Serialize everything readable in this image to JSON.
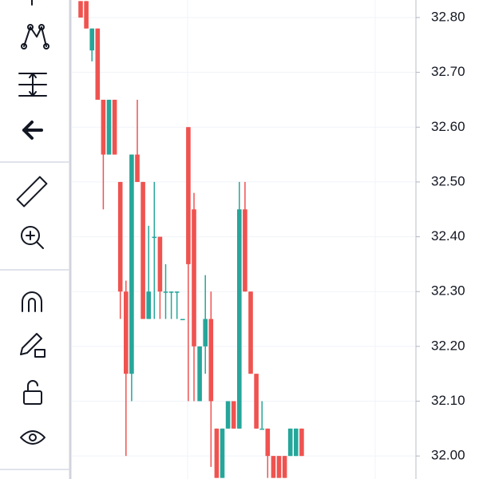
{
  "chart_data": {
    "type": "candlestick",
    "up_color": "#26a69a",
    "down_color": "#ef5350",
    "grid": true,
    "ylim": [
      31.958,
      32.832
    ],
    "yticks": [
      {
        "value": 32.0,
        "label": "32.00"
      },
      {
        "value": 32.1,
        "label": "32.10"
      },
      {
        "value": 32.2,
        "label": "32.20"
      },
      {
        "value": 32.3,
        "label": "32.30"
      },
      {
        "value": 32.4,
        "label": "32.40"
      },
      {
        "value": 32.5,
        "label": "32.50"
      },
      {
        "value": 32.6,
        "label": "32.60"
      },
      {
        "value": 32.7,
        "label": "32.70"
      },
      {
        "value": 32.8,
        "label": "32.80"
      }
    ],
    "open": [
      32.83,
      32.83,
      32.74,
      32.78,
      32.65,
      32.55,
      32.65,
      32.5,
      32.3,
      32.15,
      32.55,
      32.5,
      32.25,
      32.4,
      32.4,
      32.3,
      32.3,
      32.3,
      32.25,
      32.6,
      32.45,
      32.1,
      32.2,
      32.25,
      32.05,
      31.96,
      32.05,
      32.1,
      32.05,
      32.45,
      32.3,
      32.15,
      32.05,
      32.05,
      32.0,
      32.0,
      32.0,
      32.0,
      32.0,
      32.05
    ],
    "high": [
      32.83,
      32.83,
      32.78,
      32.78,
      32.65,
      32.65,
      32.65,
      32.5,
      32.32,
      32.55,
      32.65,
      32.5,
      32.42,
      32.5,
      32.4,
      32.35,
      32.3,
      32.3,
      32.25,
      32.6,
      32.48,
      32.2,
      32.33,
      32.3,
      32.05,
      32.05,
      32.1,
      32.1,
      32.5,
      32.5,
      32.3,
      32.15,
      32.1,
      32.05,
      32.0,
      32.0,
      32.0,
      32.05,
      32.05,
      32.05
    ],
    "low": [
      32.8,
      32.78,
      32.72,
      32.65,
      32.45,
      32.55,
      32.55,
      32.25,
      32.0,
      32.1,
      32.5,
      32.25,
      32.25,
      32.25,
      32.25,
      32.25,
      32.25,
      32.25,
      32.25,
      32.1,
      32.1,
      32.1,
      32.15,
      31.98,
      31.96,
      31.96,
      32.05,
      32.05,
      32.05,
      32.3,
      32.15,
      32.05,
      32.05,
      31.96,
      31.96,
      31.96,
      31.96,
      32.0,
      32.0,
      32.0
    ],
    "close": [
      32.8,
      32.78,
      32.78,
      32.65,
      32.55,
      32.65,
      32.55,
      32.3,
      32.15,
      32.55,
      32.5,
      32.25,
      32.3,
      32.4,
      32.3,
      32.3,
      32.3,
      32.3,
      32.25,
      32.35,
      32.2,
      32.2,
      32.25,
      32.1,
      31.96,
      32.05,
      32.1,
      32.05,
      32.45,
      32.3,
      32.15,
      32.05,
      32.05,
      32.0,
      31.96,
      31.96,
      31.96,
      32.05,
      32.05,
      32.0
    ]
  }
}
